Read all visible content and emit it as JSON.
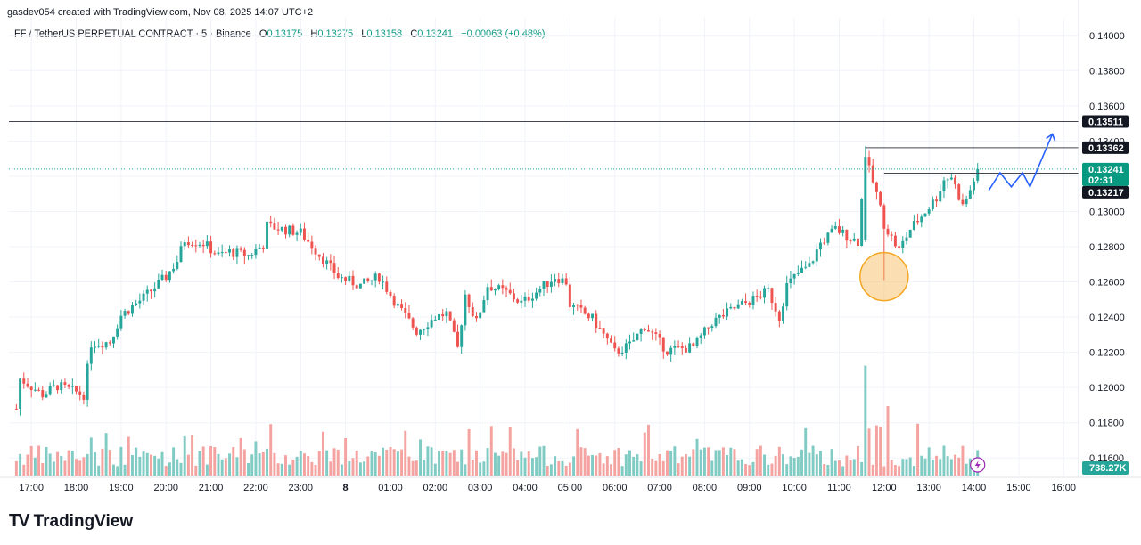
{
  "header": {
    "credit": "gasdev054 created with TradingView.com, Nov 08, 2025 14:07 UTC+2"
  },
  "symbol": {
    "name": "FF / TetherUS PERPETUAL CONTRACT · 5 · Binance",
    "o_label": "O",
    "o_value": "0.13175",
    "h_label": "H",
    "h_value": "0.13275",
    "l_label": "L",
    "l_value": "0.13158",
    "c_label": "C",
    "c_value": "0.13241",
    "change": "+0.00063 (+0.48%)"
  },
  "price_scale": {
    "labels": [
      "0.14000",
      "0.13800",
      "0.13600",
      "0.13400",
      "0.13200",
      "0.13000",
      "0.12800",
      "0.12600",
      "0.12400",
      "0.12200",
      "0.12000",
      "0.11800",
      "0.11600"
    ]
  },
  "price_tags": {
    "resistance_1": "0.13511",
    "resistance_2": "0.13362",
    "current_price": "0.13241",
    "countdown": "02:31",
    "support": "0.13217",
    "volume": "738.27K"
  },
  "time_axis": {
    "labels": [
      "17:00",
      "18:00",
      "19:00",
      "20:00",
      "21:00",
      "22:00",
      "23:00",
      "8",
      "01:00",
      "02:00",
      "03:00",
      "04:00",
      "05:00",
      "06:00",
      "07:00",
      "08:00",
      "09:00",
      "10:00",
      "11:00",
      "12:00",
      "13:00",
      "14:00",
      "15:00",
      "16:00"
    ]
  },
  "footer": {
    "logo_mark": "TV",
    "logo_text": "TradingView"
  },
  "colors": {
    "up": "#26a69a",
    "down": "#ef5350",
    "vol_up": "#80cbc4",
    "vol_down": "#f4a3a0",
    "projection": "#2962ff",
    "highlight": "#f7b955"
  },
  "chart_data": {
    "type": "candlestick",
    "title": "FF / TetherUS PERPETUAL CONTRACT · 5 · Binance",
    "interval": "5m",
    "xlabel": "",
    "ylabel": "",
    "ylim": [
      0.115,
      0.141
    ],
    "x_ticks": [
      "17:00",
      "18:00",
      "19:00",
      "20:00",
      "21:00",
      "22:00",
      "23:00",
      "8",
      "01:00",
      "02:00",
      "03:00",
      "04:00",
      "05:00",
      "06:00",
      "07:00",
      "08:00",
      "09:00",
      "10:00",
      "11:00",
      "12:00",
      "13:00",
      "14:00",
      "15:00",
      "16:00"
    ],
    "price_path": [
      {
        "time": "16:40",
        "price": 0.1188
      },
      {
        "time": "16:45",
        "price": 0.1205
      },
      {
        "time": "17:15",
        "price": 0.1196
      },
      {
        "time": "17:35",
        "price": 0.1201
      },
      {
        "time": "18:10",
        "price": 0.1196
      },
      {
        "time": "18:20",
        "price": 0.1225
      },
      {
        "time": "18:45",
        "price": 0.1226
      },
      {
        "time": "19:00",
        "price": 0.1241
      },
      {
        "time": "19:30",
        "price": 0.1251
      },
      {
        "time": "20:00",
        "price": 0.1263
      },
      {
        "time": "20:15",
        "price": 0.1272
      },
      {
        "time": "20:25",
        "price": 0.1284
      },
      {
        "time": "20:50",
        "price": 0.1282
      },
      {
        "time": "21:10",
        "price": 0.1275
      },
      {
        "time": "21:25",
        "price": 0.1277
      },
      {
        "time": "21:50",
        "price": 0.1275
      },
      {
        "time": "22:10",
        "price": 0.1281
      },
      {
        "time": "22:15",
        "price": 0.1292
      },
      {
        "time": "22:35",
        "price": 0.129
      },
      {
        "time": "23:00",
        "price": 0.1288
      },
      {
        "time": "23:30",
        "price": 0.1273
      },
      {
        "time": "23:50",
        "price": 0.1263
      },
      {
        "time": "00:20",
        "price": 0.1258
      },
      {
        "time": "00:45",
        "price": 0.1263
      },
      {
        "time": "01:10",
        "price": 0.1246
      },
      {
        "time": "01:35",
        "price": 0.1232
      },
      {
        "time": "02:00",
        "price": 0.124
      },
      {
        "time": "02:15",
        "price": 0.1242
      },
      {
        "time": "02:30",
        "price": 0.1222
      },
      {
        "time": "02:40",
        "price": 0.1253
      },
      {
        "time": "02:55",
        "price": 0.1237
      },
      {
        "time": "03:10",
        "price": 0.1258
      },
      {
        "time": "03:35",
        "price": 0.1254
      },
      {
        "time": "03:55",
        "price": 0.1248
      },
      {
        "time": "04:20",
        "price": 0.1256
      },
      {
        "time": "04:40",
        "price": 0.1263
      },
      {
        "time": "04:55",
        "price": 0.126
      },
      {
        "time": "05:00",
        "price": 0.1247
      },
      {
        "time": "05:30",
        "price": 0.1239
      },
      {
        "time": "05:45",
        "price": 0.123
      },
      {
        "time": "06:00",
        "price": 0.122
      },
      {
        "time": "06:20",
        "price": 0.1224
      },
      {
        "time": "06:40",
        "price": 0.1235
      },
      {
        "time": "06:55",
        "price": 0.1228
      },
      {
        "time": "07:10",
        "price": 0.1221
      },
      {
        "time": "07:45",
        "price": 0.1223
      },
      {
        "time": "08:10",
        "price": 0.1237
      },
      {
        "time": "08:40",
        "price": 0.1245
      },
      {
        "time": "09:05",
        "price": 0.125
      },
      {
        "time": "09:25",
        "price": 0.1255
      },
      {
        "time": "09:40",
        "price": 0.124
      },
      {
        "time": "09:50",
        "price": 0.1258
      },
      {
        "time": "10:05",
        "price": 0.1265
      },
      {
        "time": "10:20",
        "price": 0.1269
      },
      {
        "time": "10:35",
        "price": 0.1282
      },
      {
        "time": "10:55",
        "price": 0.129
      },
      {
        "time": "11:15",
        "price": 0.1285
      },
      {
        "time": "11:25",
        "price": 0.1283
      },
      {
        "time": "11:35",
        "price": 0.133
      },
      {
        "time": "11:50",
        "price": 0.131
      },
      {
        "time": "12:00",
        "price": 0.1293
      },
      {
        "time": "12:10",
        "price": 0.1285
      },
      {
        "time": "12:20",
        "price": 0.1278
      },
      {
        "time": "12:35",
        "price": 0.129
      },
      {
        "time": "12:55",
        "price": 0.13
      },
      {
        "time": "13:10",
        "price": 0.1308
      },
      {
        "time": "13:20",
        "price": 0.1318
      },
      {
        "time": "13:30",
        "price": 0.132
      },
      {
        "time": "13:45",
        "price": 0.1303
      },
      {
        "time": "13:55",
        "price": 0.1312
      },
      {
        "time": "14:05",
        "price": 0.1324
      }
    ],
    "horizontal_lines": [
      {
        "label": "resistance",
        "price": 0.13511
      },
      {
        "label": "level",
        "price": 0.13362
      },
      {
        "label": "support",
        "price": 0.13217
      },
      {
        "label": "last price",
        "price": 0.13241
      }
    ],
    "projection_path": [
      {
        "time": "14:20",
        "price": 0.1312
      },
      {
        "time": "14:35",
        "price": 0.1322
      },
      {
        "time": "14:50",
        "price": 0.1314
      },
      {
        "time": "15:05",
        "price": 0.1322
      },
      {
        "time": "15:15",
        "price": 0.1314
      },
      {
        "time": "15:45",
        "price": 0.1344
      }
    ],
    "highlight": {
      "time": "12:00",
      "price": 0.1263
    },
    "volume": {
      "last": "738.27K",
      "spikes": [
        {
          "time": "11:35",
          "ratio": 0.95
        },
        {
          "time": "12:05",
          "ratio": 0.6
        }
      ]
    }
  }
}
